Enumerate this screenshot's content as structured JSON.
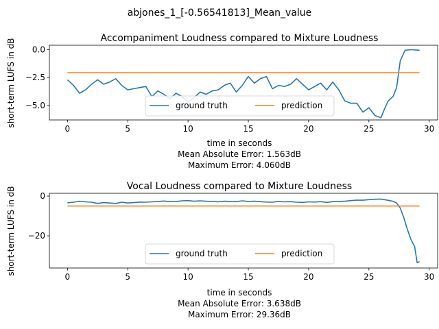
{
  "figure": {
    "suptitle": "abjones_1_[-0.56541813]_Mean_value"
  },
  "colors": {
    "ground_truth": "#1f77b4",
    "prediction": "#ff7f0e"
  },
  "chart_data": [
    {
      "type": "line",
      "title": "Accompaniment Loudness compared to Mixture Loudness",
      "xlabel": "time in seconds",
      "ylabel": "short-term LUFS in dB",
      "notes": [
        "Mean Absolute Error: 1.563dB",
        "Maximum Error: 4.060dB"
      ],
      "xlim": [
        -1.5,
        30.7
      ],
      "ylim": [
        -6.3,
        0.4
      ],
      "xticks": [
        0,
        5,
        10,
        15,
        20,
        25,
        30
      ],
      "xtick_labels": [
        "0",
        "5",
        "10",
        "15",
        "20",
        "25",
        "30"
      ],
      "yticks": [
        0,
        -2.5,
        -5
      ],
      "ytick_labels": [
        "0.0",
        "−2.5",
        "−5.0"
      ],
      "grid": false,
      "legend": {
        "placement": "lower center",
        "columns": 2
      },
      "series": [
        {
          "name": "ground truth",
          "x": [
            0,
            0.5,
            1,
            1.5,
            2,
            2.5,
            3,
            3.5,
            4,
            4.5,
            5,
            5.5,
            6,
            6.5,
            7,
            7.5,
            8,
            8.5,
            9,
            9.5,
            10,
            10.5,
            11,
            11.5,
            12,
            12.5,
            13,
            13.5,
            14,
            14.5,
            15,
            15.5,
            16,
            16.5,
            17,
            17.5,
            18,
            18.5,
            19,
            19.5,
            20,
            20.5,
            21,
            21.5,
            22,
            22.5,
            23,
            23.5,
            24,
            24.5,
            25,
            25.5,
            26,
            26.3,
            26.6,
            27,
            27.3,
            27.6,
            28,
            28.5,
            29.2
          ],
          "values": [
            -2.7,
            -3.2,
            -3.9,
            -3.6,
            -3.1,
            -2.7,
            -3.1,
            -2.9,
            -2.6,
            -3.2,
            -3.6,
            -3.5,
            -3.4,
            -3.3,
            -4.2,
            -3.7,
            -4.0,
            -4.4,
            -3.9,
            -4.2,
            -4.7,
            -4.3,
            -3.8,
            -4.0,
            -3.7,
            -3.6,
            -3.2,
            -3.0,
            -3.8,
            -3.2,
            -2.4,
            -3.0,
            -2.6,
            -2.4,
            -3.5,
            -3.2,
            -3.3,
            -3.1,
            -2.6,
            -3.1,
            -3.6,
            -3.3,
            -3.0,
            -3.6,
            -2.9,
            -3.6,
            -4.6,
            -4.8,
            -4.8,
            -5.6,
            -5.2,
            -5.9,
            -6.1,
            -5.3,
            -4.6,
            -4.2,
            -3.4,
            -1.0,
            -0.05,
            0.0,
            -0.05
          ]
        },
        {
          "name": "prediction",
          "x": [
            0,
            29.2
          ],
          "values": [
            -2.06,
            -2.06
          ]
        }
      ]
    },
    {
      "type": "line",
      "title": "Vocal Loudness compared to Mixture Loudness",
      "xlabel": "time in seconds",
      "ylabel": "short-term LUFS in dB",
      "notes": [
        "Mean Absolute Error: 3.638dB",
        "Maximum Error: 29.36dB"
      ],
      "xlim": [
        -1.5,
        30.7
      ],
      "ylim": [
        -36.2,
        1.4
      ],
      "xticks": [
        0,
        5,
        10,
        15,
        20,
        25,
        30
      ],
      "xtick_labels": [
        "0",
        "5",
        "10",
        "15",
        "20",
        "25",
        "30"
      ],
      "yticks": [
        0,
        -20
      ],
      "ytick_labels": [
        "0",
        "−20"
      ],
      "grid": false,
      "legend": {
        "placement": "lower center",
        "columns": 2
      },
      "series": [
        {
          "name": "ground truth",
          "x": [
            0,
            0.5,
            1,
            1.5,
            2,
            2.5,
            3,
            3.5,
            4,
            4.5,
            5,
            5.5,
            6,
            6.5,
            7,
            7.5,
            8,
            8.5,
            9,
            9.5,
            10,
            10.5,
            11,
            11.5,
            12,
            12.5,
            13,
            13.5,
            14,
            14.5,
            15,
            15.5,
            16,
            16.5,
            17,
            17.5,
            18,
            18.5,
            19,
            19.5,
            20,
            20.5,
            21,
            21.5,
            22,
            22.5,
            23,
            23.5,
            24,
            24.5,
            25,
            25.5,
            26,
            26.5,
            27,
            27.3,
            27.6,
            27.9,
            28.2,
            28.5,
            28.8,
            29.0,
            29.2
          ],
          "values": [
            -3.4,
            -3.1,
            -2.6,
            -2.9,
            -3.1,
            -3.7,
            -3.3,
            -3.5,
            -3.7,
            -3.1,
            -3.5,
            -3.3,
            -3.0,
            -3.1,
            -2.9,
            -2.7,
            -2.5,
            -2.8,
            -2.7,
            -2.4,
            -2.3,
            -2.6,
            -2.4,
            -2.6,
            -2.7,
            -2.9,
            -2.6,
            -2.7,
            -2.8,
            -2.4,
            -2.7,
            -2.6,
            -2.8,
            -3.0,
            -3.1,
            -2.7,
            -2.9,
            -2.8,
            -3.1,
            -3.2,
            -2.9,
            -3.0,
            -2.8,
            -3.2,
            -2.8,
            -2.7,
            -2.6,
            -2.3,
            -2.0,
            -2.1,
            -1.8,
            -1.6,
            -1.5,
            -2.0,
            -2.6,
            -3.5,
            -6.0,
            -11.0,
            -17.0,
            -22.0,
            -25.5,
            -33.5,
            -33.0
          ]
        },
        {
          "name": "prediction",
          "x": [
            0,
            29.2
          ],
          "values": [
            -5.0,
            -5.0
          ]
        }
      ]
    }
  ]
}
